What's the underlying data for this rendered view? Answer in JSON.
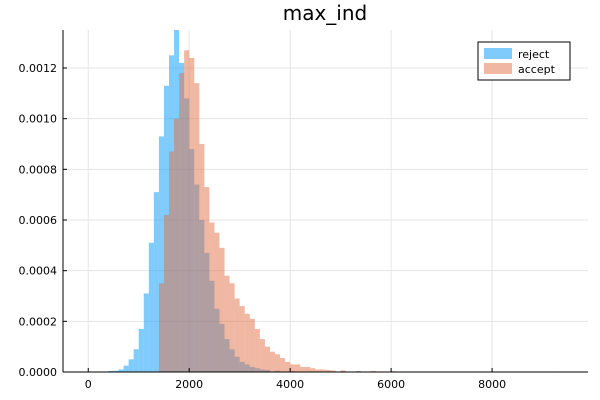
{
  "chart_data": {
    "type": "histogram",
    "title": "max_ind",
    "xlabel": "",
    "ylabel": "",
    "xlim": [
      -500,
      9900
    ],
    "ylim": [
      0,
      0.00135
    ],
    "bin_width": 100,
    "x_ticks": [
      0,
      2000,
      4000,
      6000,
      8000
    ],
    "x_tick_labels": [
      "0",
      "2000",
      "4000",
      "6000",
      "8000"
    ],
    "y_ticks": [
      0,
      0.0002,
      0.0004,
      0.0006,
      0.0008,
      0.001,
      0.0012
    ],
    "y_tick_labels": [
      "0.0000",
      "0.0002",
      "0.0004",
      "0.0006",
      "0.0008",
      "0.0010",
      "0.0012"
    ],
    "grid": true,
    "legend_position": "top-right",
    "series": [
      {
        "name": "reject",
        "color": "#009AFA",
        "opacity": 0.5,
        "bins": [
          [
            0,
            2e-06
          ],
          [
            200,
            2e-06
          ],
          [
            400,
            4e-06
          ],
          [
            500,
            5e-06
          ],
          [
            600,
            1e-05
          ],
          [
            700,
            2.5e-05
          ],
          [
            800,
            5e-05
          ],
          [
            900,
            9e-05
          ],
          [
            1000,
            0.00017
          ],
          [
            1100,
            0.00031
          ],
          [
            1200,
            0.00051
          ],
          [
            1300,
            0.00071
          ],
          [
            1400,
            0.00093
          ],
          [
            1500,
            0.00113
          ],
          [
            1600,
            0.00125
          ],
          [
            1700,
            0.00135
          ],
          [
            1800,
            0.00122
          ],
          [
            1900,
            0.00108
          ],
          [
            2000,
            0.00088
          ],
          [
            2100,
            0.00074
          ],
          [
            2200,
            0.0006
          ],
          [
            2300,
            0.00047
          ],
          [
            2400,
            0.00036
          ],
          [
            2500,
            0.00025
          ],
          [
            2600,
            0.00019
          ],
          [
            2700,
            0.00013
          ],
          [
            2800,
            9e-05
          ],
          [
            2900,
            6e-05
          ],
          [
            3000,
            4e-05
          ],
          [
            3100,
            3e-05
          ],
          [
            3200,
            2e-05
          ],
          [
            3300,
            1.5e-05
          ],
          [
            3400,
            1e-05
          ],
          [
            3500,
            8e-06
          ],
          [
            3700,
            5e-06
          ],
          [
            4000,
            3e-06
          ],
          [
            5000,
            3e-06
          ],
          [
            6000,
            2e-06
          ],
          [
            9200,
            2e-06
          ]
        ]
      },
      {
        "name": "accept",
        "color": "#E26F46",
        "opacity": 0.5,
        "bins": [
          [
            1400,
            0.00035
          ],
          [
            1500,
            0.00062
          ],
          [
            1600,
            0.00087
          ],
          [
            1700,
            0.001
          ],
          [
            1800,
            0.00118
          ],
          [
            1900,
            0.00127
          ],
          [
            2000,
            0.00124
          ],
          [
            2100,
            0.00114
          ],
          [
            2200,
            0.0009
          ],
          [
            2300,
            0.00073
          ],
          [
            2400,
            0.00059
          ],
          [
            2500,
            0.00055
          ],
          [
            2600,
            0.00049
          ],
          [
            2700,
            0.00038
          ],
          [
            2800,
            0.00035
          ],
          [
            2900,
            0.00029
          ],
          [
            3000,
            0.00026
          ],
          [
            3100,
            0.00023
          ],
          [
            3200,
            0.00021
          ],
          [
            3300,
            0.00017
          ],
          [
            3400,
            0.00013
          ],
          [
            3500,
            0.0001
          ],
          [
            3600,
            8e-05
          ],
          [
            3700,
            7e-05
          ],
          [
            3800,
            5.5e-05
          ],
          [
            3900,
            4e-05
          ],
          [
            4000,
            3e-05
          ],
          [
            4100,
            3e-05
          ],
          [
            4200,
            2e-05
          ],
          [
            4300,
            2e-05
          ],
          [
            4400,
            1.5e-05
          ],
          [
            4500,
            1e-05
          ],
          [
            4600,
            1e-05
          ],
          [
            4700,
            8e-06
          ],
          [
            4800,
            6e-06
          ],
          [
            5000,
            6e-06
          ],
          [
            5300,
            4e-06
          ],
          [
            5600,
            4e-06
          ],
          [
            6000,
            3e-06
          ]
        ]
      }
    ]
  }
}
